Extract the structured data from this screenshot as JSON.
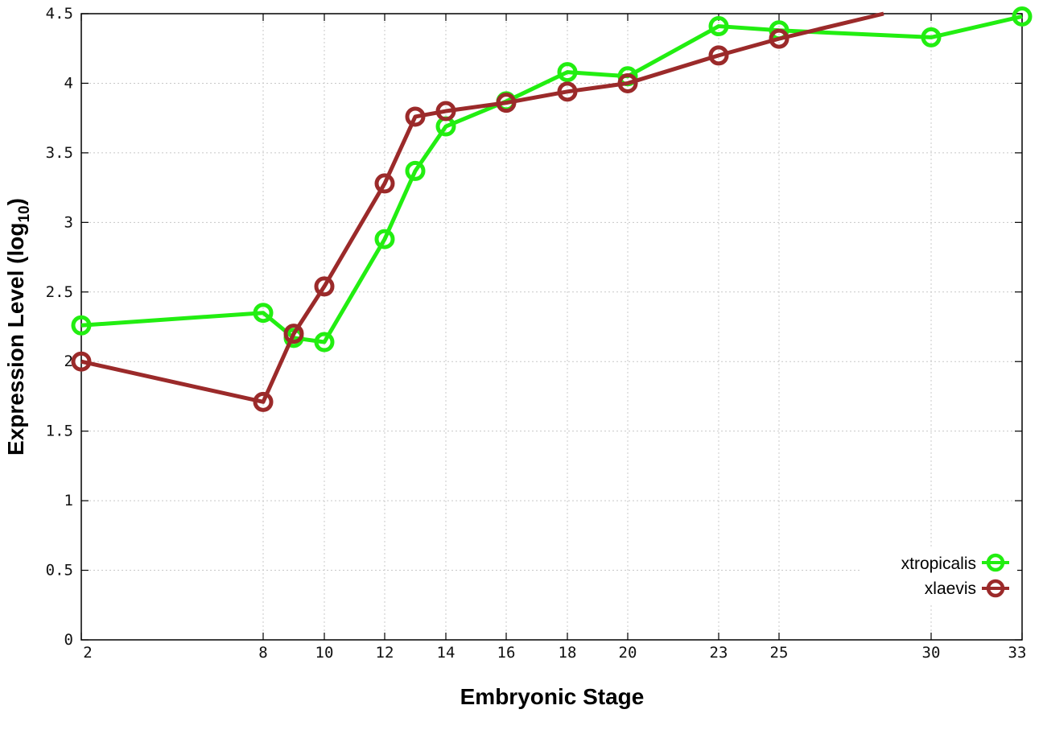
{
  "chart_data": {
    "type": "line",
    "title": "",
    "xlabel": "Embryonic Stage",
    "ylabel_main": "Expression Level (log",
    "ylabel_sub": "10",
    "ylabel_close": ")",
    "x_categories": [
      "2",
      "8",
      "9",
      "10",
      "12",
      "13",
      "14",
      "16",
      "18",
      "20",
      "23",
      "25",
      "30",
      "33"
    ],
    "x_tick_labels": [
      "2",
      "8",
      "10",
      "12",
      "14",
      "16",
      "18",
      "20",
      "23",
      "25",
      "30",
      "33"
    ],
    "y_ticks": [
      "0",
      "0.5",
      "1",
      "1.5",
      "2",
      "2.5",
      "3",
      "3.5",
      "4",
      "4.5"
    ],
    "ylim": [
      0,
      4.5
    ],
    "grid": true,
    "legend_position": "bottom-right",
    "series": [
      {
        "name": "xtropicalis",
        "color": "#22ee11",
        "x": [
          "2",
          "8",
          "9",
          "10",
          "12",
          "13",
          "14",
          "16",
          "18",
          "20",
          "23",
          "25",
          "30",
          "33"
        ],
        "values": [
          2.26,
          2.35,
          2.17,
          2.14,
          2.88,
          3.37,
          3.69,
          3.87,
          4.08,
          4.05,
          4.41,
          4.38,
          4.33,
          4.48
        ]
      },
      {
        "name": "xlaevis",
        "color": "#9b2a2a",
        "x": [
          "2",
          "8",
          "9",
          "10",
          "12",
          "13",
          "14",
          "16",
          "18",
          "20",
          "23",
          "25"
        ],
        "values": [
          2.0,
          1.71,
          2.2,
          2.54,
          3.28,
          3.76,
          3.8,
          3.86,
          3.94,
          4.0,
          4.2,
          4.32
        ],
        "trailing_end": {
          "x": "28",
          "y": 4.5
        }
      }
    ]
  }
}
